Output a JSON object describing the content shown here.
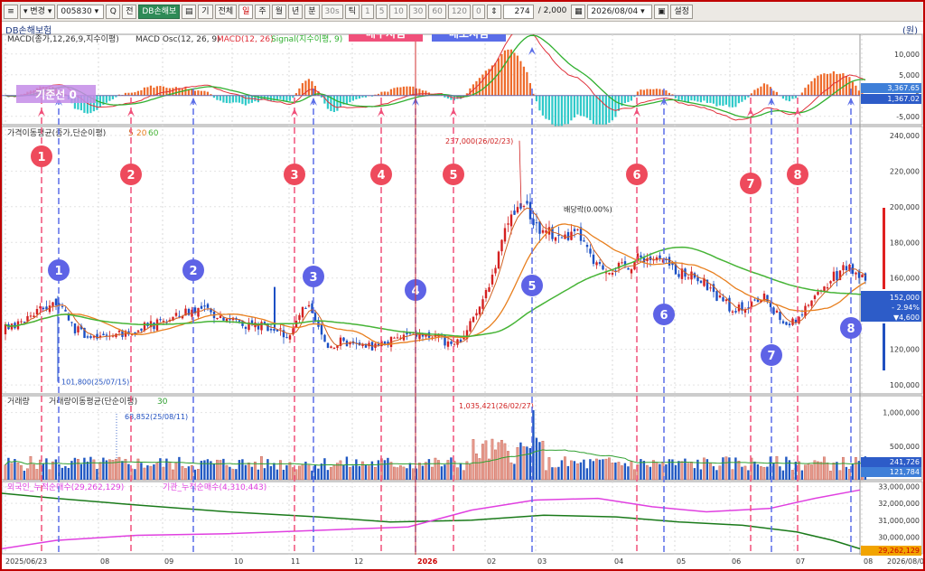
{
  "toolbar": {
    "mode_label": "변경",
    "code": "005830",
    "buttons": [
      "Q",
      "전",
      "DB손해보",
      "기",
      "전체",
      "일",
      "주",
      "월",
      "년",
      "분",
      "30s",
      "틱",
      "1",
      "5",
      "10",
      "30",
      "60",
      "120",
      "0"
    ],
    "count_value": "274",
    "count_total": "/ 2,000",
    "date_value": "2026/08/04",
    "settings_label": "설정"
  },
  "title": {
    "name": "DB손해보험",
    "unit": "(원)"
  },
  "banners": {
    "buy": "매수지점",
    "sell": "매도지점",
    "baseline": "기준선 0"
  },
  "panels": {
    "macd_legend": [
      "MACD(종가,12,26,9,지수이평)",
      "MACD Osc(12, 26, 9)",
      "MACD(12, 26)",
      "Signal(지수이평, 9)"
    ],
    "price_legend": [
      "가격이동평균(종가,단순이평)",
      "5",
      "20",
      "60"
    ],
    "volume_legend": [
      "거래량",
      "거래량이동평균(단순이평)",
      "30"
    ],
    "flow_legend": [
      "외국인_누적순매수(29,262,129)",
      "기관_누적순매수(4,310,443)"
    ]
  },
  "chart_data": {
    "type": "candlestick",
    "x_ticks": [
      "2025/06/23",
      "08",
      "09",
      "10",
      "11",
      "12",
      "2026",
      "02",
      "03",
      "04",
      "05",
      "06",
      "07",
      "08",
      "2026/08/04"
    ],
    "price": {
      "ylim": [
        95000,
        245000
      ],
      "yticks": [
        "240,000",
        "220,000",
        "200,000",
        "180,000",
        "160,000",
        "140,000",
        "120,000",
        "100,000"
      ],
      "close_path": [
        [
          0,
          130000
        ],
        [
          20,
          135000
        ],
        [
          40,
          142000
        ],
        [
          60,
          147000
        ],
        [
          80,
          132000
        ],
        [
          100,
          126000
        ],
        [
          120,
          128000
        ],
        [
          140,
          129000
        ],
        [
          160,
          132000
        ],
        [
          180,
          136000
        ],
        [
          200,
          140000
        ],
        [
          215,
          143000
        ],
        [
          235,
          140000
        ],
        [
          255,
          137000
        ],
        [
          275,
          134000
        ],
        [
          295,
          133000
        ],
        [
          305,
          131000
        ],
        [
          320,
          128000
        ],
        [
          330,
          140000
        ],
        [
          340,
          143000
        ],
        [
          350,
          132000
        ],
        [
          360,
          122000
        ],
        [
          375,
          124000
        ],
        [
          390,
          122000
        ],
        [
          410,
          122000
        ],
        [
          430,
          125000
        ],
        [
          450,
          128000
        ],
        [
          470,
          128000
        ],
        [
          490,
          125000
        ],
        [
          505,
          124000
        ],
        [
          515,
          130000
        ],
        [
          530,
          145000
        ],
        [
          545,
          165000
        ],
        [
          560,
          190000
        ],
        [
          575,
          203000
        ],
        [
          585,
          195000
        ],
        [
          600,
          185000
        ],
        [
          620,
          183000
        ],
        [
          640,
          184000
        ],
        [
          655,
          168000
        ],
        [
          670,
          165000
        ],
        [
          690,
          167000
        ],
        [
          710,
          172000
        ],
        [
          730,
          170000
        ],
        [
          750,
          163000
        ],
        [
          770,
          160000
        ],
        [
          790,
          150000
        ],
        [
          805,
          143000
        ],
        [
          820,
          143000
        ],
        [
          835,
          146000
        ],
        [
          845,
          150000
        ],
        [
          855,
          140000
        ],
        [
          870,
          133000
        ],
        [
          885,
          140000
        ],
        [
          900,
          150000
        ],
        [
          915,
          157000
        ],
        [
          930,
          165000
        ],
        [
          945,
          165000
        ],
        [
          960,
          155000
        ]
      ],
      "ma5": {
        "color": "#d06020",
        "label": "5"
      },
      "ma20": {
        "color": "#e87f1e",
        "label": "20"
      },
      "ma60": {
        "color": "#46b436",
        "label": "60"
      },
      "annotations": [
        {
          "label": "237,000(26/02/23)",
          "x": 575,
          "y": 237000,
          "color": "#d02020"
        },
        {
          "label": "101,800(25/07/15)",
          "x": 62,
          "y": 101800,
          "color": "#2050c0"
        },
        {
          "label": "배당락(0.00%)",
          "x": 622,
          "y": 195000,
          "color": "#222"
        }
      ],
      "current": [
        "152,000",
        "- 2.94%",
        "▼4,600"
      ]
    },
    "macd": {
      "yticks": [
        "10,000",
        "5,000",
        "0",
        "-5,000"
      ],
      "labels": [
        "3,367.65",
        "1,367.02"
      ]
    },
    "volume": {
      "yticks": [
        "1,000,000",
        "500,000"
      ],
      "annotations": [
        {
          "label": "1,035,421(26/02/27)",
          "x": 588
        },
        {
          "label": "68,852(25/08/11)",
          "x": 128
        }
      ],
      "current": [
        "241,726",
        "121,784"
      ]
    },
    "flow": {
      "yticks": [
        "33,000,000",
        "32,000,000",
        "31,000,000",
        "30,000,000"
      ],
      "current": "29,262,129",
      "foreign_color": "#e040e0",
      "institution_color": "#1a7a1a"
    },
    "buy_points": [
      {
        "id": "1",
        "x": 44
      },
      {
        "id": "2",
        "x": 143
      },
      {
        "id": "3",
        "x": 324
      },
      {
        "id": "4",
        "x": 420
      },
      {
        "id": "5",
        "x": 500
      },
      {
        "id": "6",
        "x": 703
      },
      {
        "id": "7",
        "x": 829
      },
      {
        "id": "8",
        "x": 881
      }
    ],
    "sell_points": [
      {
        "id": "1",
        "x": 63
      },
      {
        "id": "2",
        "x": 212
      },
      {
        "id": "3",
        "x": 345
      },
      {
        "id": "4",
        "x": 458
      },
      {
        "id": "5",
        "x": 587
      },
      {
        "id": "6",
        "x": 733
      },
      {
        "id": "7",
        "x": 852
      },
      {
        "id": "8",
        "x": 940
      }
    ],
    "colors": {
      "buy": "#f0507a",
      "sell": "#5a6de8",
      "buy_circle": "#ee4a5c",
      "sell_circle": "#5e63e6"
    }
  }
}
